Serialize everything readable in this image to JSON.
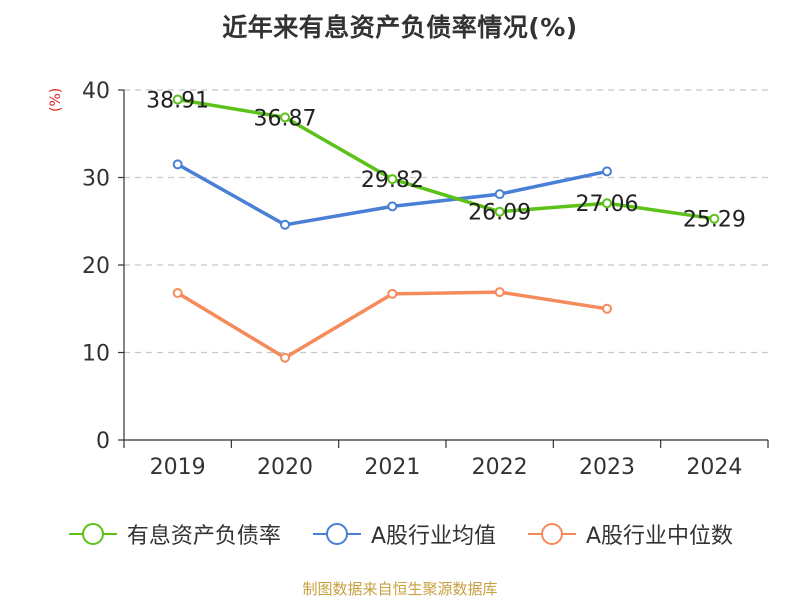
{
  "chart_data": {
    "type": "line",
    "title": "近年来有息资产负债率情况(%)",
    "ylabel": "(%)",
    "xlabel": "",
    "categories": [
      "2019",
      "2020",
      "2021",
      "2022",
      "2023",
      "2024"
    ],
    "ylim": [
      0,
      40
    ],
    "yticks": [
      0,
      10,
      20,
      30,
      40
    ],
    "grid": true,
    "legend_position": "bottom",
    "series": [
      {
        "name": "有息资产负债率",
        "color": "#5cc21a",
        "values": [
          38.91,
          36.87,
          29.82,
          26.09,
          27.06,
          25.29
        ],
        "labels": [
          "38.91",
          "36.87",
          "29.82",
          "26.09",
          "27.06",
          "25.29"
        ],
        "show_labels": true
      },
      {
        "name": "A股行业均值",
        "color": "#4a7fd6",
        "values": [
          31.5,
          24.6,
          26.7,
          28.1,
          30.7,
          null
        ],
        "show_labels": false
      },
      {
        "name": "A股行业中位数",
        "color": "#f58b5a",
        "values": [
          16.8,
          9.4,
          16.7,
          16.9,
          15.0,
          null
        ],
        "show_labels": false
      }
    ]
  },
  "source_note": "制图数据来自恒生聚源数据库"
}
